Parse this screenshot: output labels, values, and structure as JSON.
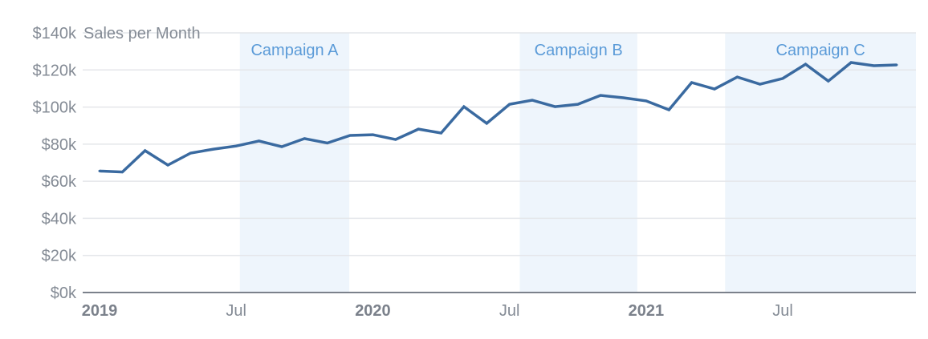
{
  "chart_data": {
    "type": "line",
    "title": "Sales per Month",
    "xlabel": "",
    "ylabel": "",
    "ylim": [
      0,
      140000
    ],
    "yticks": [
      0,
      20000,
      40000,
      60000,
      80000,
      100000,
      120000,
      140000
    ],
    "ytick_labels": [
      "$0k",
      "$20k",
      "$40k",
      "$60k",
      "$80k",
      "$100k",
      "$120k",
      "$140k"
    ],
    "xticks": [
      {
        "date": "2019-01",
        "label": "2019",
        "bold": true
      },
      {
        "date": "2019-07",
        "label": "Jul",
        "bold": false
      },
      {
        "date": "2020-01",
        "label": "2020",
        "bold": true
      },
      {
        "date": "2020-07",
        "label": "Jul",
        "bold": false
      },
      {
        "date": "2021-01",
        "label": "2021",
        "bold": true
      },
      {
        "date": "2021-07",
        "label": "Jul",
        "bold": false
      }
    ],
    "grid": true,
    "x": [
      "2019-01",
      "2019-02",
      "2019-03",
      "2019-04",
      "2019-05",
      "2019-06",
      "2019-07",
      "2019-08",
      "2019-09",
      "2019-10",
      "2019-11",
      "2019-12",
      "2020-01",
      "2020-02",
      "2020-03",
      "2020-04",
      "2020-05",
      "2020-06",
      "2020-07",
      "2020-08",
      "2020-09",
      "2020-10",
      "2020-11",
      "2020-12",
      "2021-01",
      "2021-02",
      "2021-03",
      "2021-04",
      "2021-05",
      "2021-06",
      "2021-07",
      "2021-08",
      "2021-09",
      "2021-10",
      "2021-11",
      "2021-12"
    ],
    "values": [
      65500,
      65000,
      76500,
      68700,
      75200,
      77300,
      79000,
      81700,
      78600,
      83000,
      80600,
      84700,
      85100,
      82500,
      88100,
      86000,
      100200,
      91200,
      101500,
      103700,
      100200,
      101500,
      106300,
      105000,
      103300,
      98500,
      113200,
      109700,
      116200,
      112300,
      115400,
      123100,
      114000,
      124000,
      122300,
      122700
    ],
    "annotations": [
      {
        "label": "Campaign A",
        "start": "2019-07-06",
        "end": "2019-11-30"
      },
      {
        "label": "Campaign B",
        "start": "2020-07-15",
        "end": "2020-12-20"
      },
      {
        "label": "Campaign C",
        "start": "2021-04-15",
        "end": "2021-12-31"
      }
    ],
    "colors": {
      "line": "#3a6aa0",
      "band": "#eef5fc",
      "band_label": "#5b9bd8",
      "grid": "#e4e6ea",
      "axis": "#7b818b",
      "text": "#848b95"
    }
  }
}
